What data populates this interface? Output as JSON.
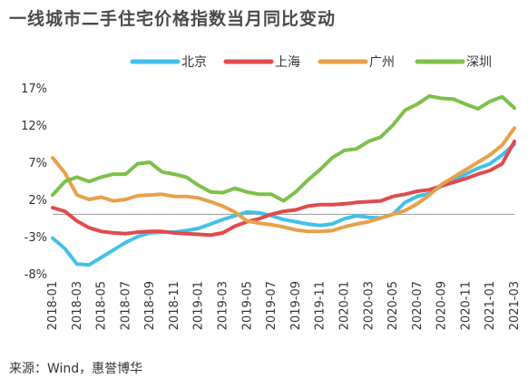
{
  "chart_data": {
    "type": "line",
    "title": "一线城市二手住宅价格指数当月同比变动",
    "source": "来源：Wind，惠誉博华",
    "ylim": [
      -8,
      17
    ],
    "yticks": [
      17,
      12,
      7,
      2,
      -3,
      -8
    ],
    "ytick_labels": [
      "17%",
      "12%",
      "7%",
      "2%",
      "-3%",
      "-8%"
    ],
    "x_tick_labels": [
      "2018-01",
      "2018-03",
      "2018-05",
      "2018-07",
      "2018-09",
      "2018-11",
      "2019-01",
      "2019-03",
      "2019-05",
      "2019-07",
      "2019-09",
      "2019-11",
      "2020-01",
      "2020-03",
      "2020-05",
      "2020-07",
      "2020-09",
      "2020-11",
      "2021-01",
      "2021-03"
    ],
    "grid": false,
    "legend_position": "top-right",
    "x": [
      "2018-01",
      "2018-02",
      "2018-03",
      "2018-04",
      "2018-05",
      "2018-06",
      "2018-07",
      "2018-08",
      "2018-09",
      "2018-10",
      "2018-11",
      "2018-12",
      "2019-01",
      "2019-02",
      "2019-03",
      "2019-04",
      "2019-05",
      "2019-06",
      "2019-07",
      "2019-08",
      "2019-09",
      "2019-10",
      "2019-11",
      "2019-12",
      "2020-01",
      "2020-02",
      "2020-03",
      "2020-04",
      "2020-05",
      "2020-06",
      "2020-07",
      "2020-08",
      "2020-09",
      "2020-10",
      "2020-11",
      "2020-12",
      "2021-01",
      "2021-02",
      "2021-03"
    ],
    "series": [
      {
        "name": "北京",
        "color": "#42c0ea",
        "values": [
          -3.2,
          -4.6,
          -6.7,
          -6.8,
          -5.8,
          -4.8,
          -3.8,
          -3.0,
          -2.5,
          -2.4,
          -2.4,
          -2.2,
          -1.9,
          -1.3,
          -0.7,
          -0.2,
          0.3,
          0.2,
          -0.2,
          -0.7,
          -1.0,
          -1.3,
          -1.5,
          -1.3,
          -0.6,
          -0.2,
          -0.4,
          -0.5,
          0.0,
          1.6,
          2.4,
          2.8,
          3.8,
          4.5,
          5.4,
          6.2,
          6.8,
          8.0,
          9.4
        ]
      },
      {
        "name": "上海",
        "color": "#e04b4b",
        "values": [
          0.9,
          0.4,
          -0.9,
          -1.8,
          -2.3,
          -2.5,
          -2.6,
          -2.4,
          -2.3,
          -2.3,
          -2.5,
          -2.6,
          -2.7,
          -2.8,
          -2.5,
          -1.6,
          -1.0,
          -0.6,
          0.0,
          0.4,
          0.6,
          1.1,
          1.3,
          1.3,
          1.4,
          1.6,
          1.7,
          1.8,
          2.4,
          2.7,
          3.1,
          3.3,
          3.8,
          4.3,
          4.8,
          5.4,
          5.9,
          6.8,
          9.8
        ]
      },
      {
        "name": "广州",
        "color": "#e8a04a",
        "values": [
          7.6,
          5.6,
          2.6,
          2.0,
          2.3,
          1.8,
          2.0,
          2.5,
          2.6,
          2.7,
          2.4,
          2.4,
          2.2,
          1.7,
          1.1,
          0.3,
          -0.9,
          -1.2,
          -1.4,
          -1.7,
          -2.1,
          -2.3,
          -2.3,
          -2.2,
          -1.7,
          -1.3,
          -1.0,
          -0.5,
          0.0,
          0.5,
          1.4,
          2.6,
          4.0,
          5.0,
          6.0,
          7.0,
          8.0,
          9.3,
          11.6
        ]
      },
      {
        "name": "深圳",
        "color": "#7ec04a",
        "values": [
          2.6,
          4.4,
          5.0,
          4.4,
          5.0,
          5.4,
          5.4,
          6.8,
          7.0,
          5.7,
          5.4,
          5.0,
          3.9,
          3.0,
          2.9,
          3.5,
          3.0,
          2.7,
          2.7,
          1.8,
          3.0,
          4.6,
          6.0,
          7.6,
          8.6,
          8.8,
          9.8,
          10.4,
          12.0,
          14.0,
          14.8,
          15.9,
          15.6,
          15.5,
          14.8,
          14.2,
          15.2,
          15.8,
          14.3
        ]
      }
    ]
  }
}
